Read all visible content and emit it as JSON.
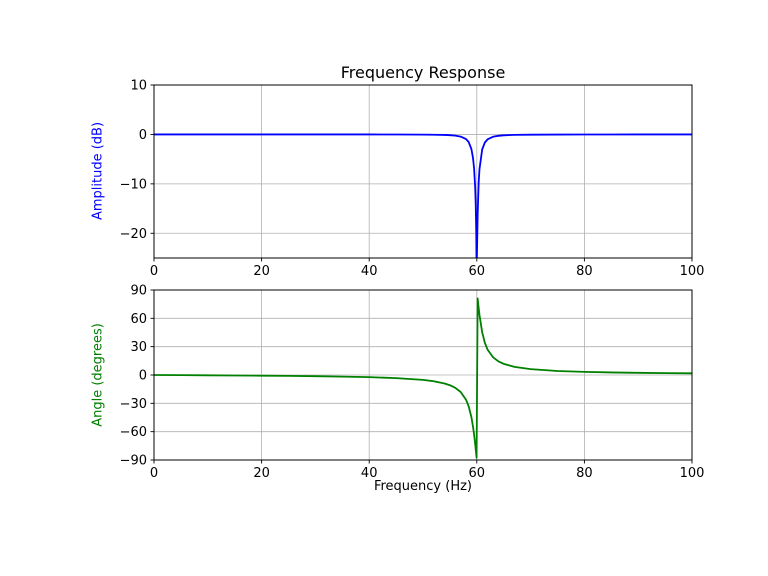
{
  "figure": {
    "background": "#ffffff",
    "title": "Frequency Response"
  },
  "chart_data": [
    {
      "type": "line",
      "name": "amplitude",
      "title": "Frequency Response",
      "xlabel": "",
      "ylabel": "Amplitude (dB)",
      "ylabel_color": "#0000ff",
      "line_color": "#0000ff",
      "grid": true,
      "grid_color": "#b0b0b0",
      "legend": "none",
      "xlim": [
        0,
        100
      ],
      "ylim": [
        -25,
        10
      ],
      "xticks": [
        0,
        20,
        40,
        60,
        80,
        100
      ],
      "yticks": [
        10,
        0,
        -10,
        -20
      ],
      "x": [
        0,
        5,
        10,
        15,
        20,
        25,
        30,
        35,
        40,
        45,
        50,
        52,
        54,
        55,
        56,
        57,
        58,
        58.5,
        59,
        59.3,
        59.5,
        59.7,
        59.8,
        59.9,
        59.96,
        60.16,
        60.35,
        60.5,
        61,
        61.5,
        62,
        63,
        64,
        65,
        67,
        70,
        75,
        80,
        85,
        90,
        95,
        100
      ],
      "y": [
        0,
        0,
        0,
        0,
        -0.001,
        -0.001,
        -0.002,
        -0.004,
        -0.007,
        -0.014,
        -0.036,
        -0.058,
        -0.107,
        -0.156,
        -0.246,
        -0.435,
        -0.939,
        -1.563,
        -2.975,
        -4.795,
        -6.961,
        -10.81,
        -14.14,
        -20.03,
        -28.2,
        -16.2,
        -9.64,
        -7.02,
        -3.05,
        -1.63,
        -1.0,
        -0.48,
        -0.28,
        -0.18,
        -0.098,
        -0.05,
        -0.024,
        -0.014,
        -0.01,
        -0.007,
        -0.005,
        -0.004
      ]
    },
    {
      "type": "line",
      "name": "phase",
      "title": "",
      "xlabel": "Frequency (Hz)",
      "ylabel": "Angle (degrees)",
      "ylabel_color": "#008000",
      "line_color": "#008000",
      "grid": true,
      "grid_color": "#b0b0b0",
      "legend": "none",
      "xlim": [
        0,
        100
      ],
      "ylim": [
        -90,
        90
      ],
      "xticks": [
        0,
        20,
        40,
        60,
        80,
        100
      ],
      "yticks": [
        90,
        60,
        30,
        0,
        -30,
        -60,
        -90
      ],
      "x": [
        0,
        5,
        10,
        15,
        20,
        25,
        30,
        35,
        40,
        45,
        50,
        52,
        54,
        55,
        56,
        57,
        58,
        58.5,
        59,
        59.3,
        59.5,
        59.7,
        59.8,
        59.9,
        59.96,
        60.16,
        60.35,
        60.5,
        61,
        61.5,
        62,
        63,
        64,
        65,
        67,
        70,
        75,
        80,
        85,
        90,
        95,
        100
      ],
      "y": [
        0,
        -0.16,
        -0.33,
        -0.51,
        -0.72,
        -0.96,
        -1.27,
        -1.69,
        -2.29,
        -3.27,
        -5.19,
        -6.62,
        -8.97,
        -10.83,
        -13.58,
        -17.99,
        -26.17,
        -33.35,
        -44.76,
        -54.85,
        -63.33,
        -73.27,
        -78.67,
        -84.3,
        -87.7,
        81.1,
        70.8,
        63.5,
        45.2,
        34.0,
        26.9,
        18.9,
        14.5,
        11.8,
        8.6,
        6.2,
        4.2,
        3.3,
        2.7,
        2.3,
        2.0,
        1.8
      ]
    }
  ]
}
